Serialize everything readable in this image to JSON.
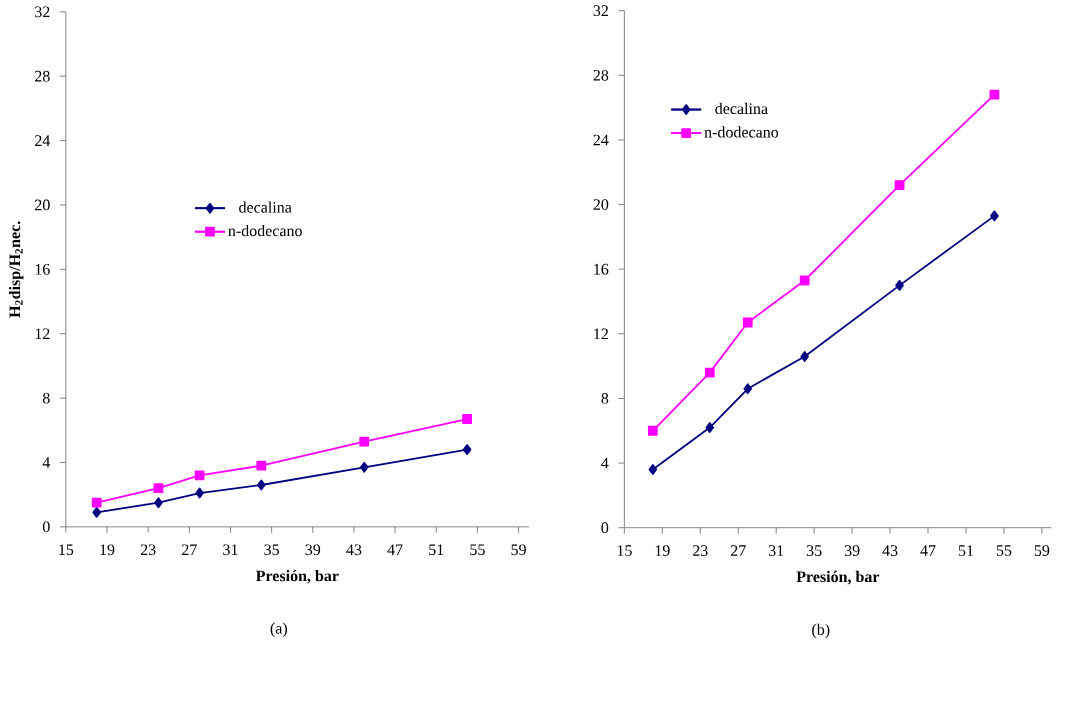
{
  "chart_data": [
    {
      "type": "line",
      "xlabel": "Presión, bar",
      "ylabel": "H$_{2}$disp/H$_{2}$nec.",
      "annotations": [
        "(a)"
      ],
      "x": [
        18,
        24,
        28,
        34,
        44,
        54
      ],
      "series": [
        {
          "name": "decalina",
          "color": "#000080",
          "marker": "diamond",
          "values": [
            0.9,
            1.5,
            2.1,
            2.6,
            3.7,
            4.8
          ]
        },
        {
          "name": "n-dodecano",
          "color": "#ff00ff",
          "marker": "square",
          "values": [
            1.5,
            2.4,
            3.2,
            3.8,
            5.3,
            6.7
          ]
        }
      ],
      "xlim": [
        15,
        60
      ],
      "ylim": [
        0,
        32
      ],
      "xticks": [
        15,
        19,
        23,
        27,
        31,
        35,
        39,
        43,
        47,
        51,
        55,
        59
      ],
      "yticks": [
        0,
        4,
        8,
        12,
        16,
        20,
        24,
        28,
        32
      ],
      "grid": false,
      "legend": "center left",
      "line_style": "solid"
    },
    {
      "type": "line",
      "xlabel": "Presión, bar",
      "annotations": [
        "(b)"
      ],
      "x": [
        18,
        24,
        28,
        34,
        44,
        54
      ],
      "series": [
        {
          "name": "decalina",
          "color": "#000080",
          "marker": "diamond",
          "values": [
            3.6,
            6.2,
            8.6,
            10.6,
            15.0,
            19.3
          ]
        },
        {
          "name": "n-dodecano",
          "color": "#ff00ff",
          "marker": "square",
          "values": [
            6.0,
            9.6,
            12.7,
            15.3,
            21.2,
            26.8
          ]
        }
      ],
      "xlim": [
        15,
        60
      ],
      "ylim": [
        0,
        32
      ],
      "xticks": [
        15,
        19,
        23,
        27,
        31,
        35,
        39,
        43,
        47,
        51,
        55,
        59
      ],
      "yticks": [
        0,
        4,
        8,
        12,
        16,
        20,
        24,
        28,
        32
      ],
      "grid": false,
      "legend": "top left",
      "line_style": "solid"
    }
  ]
}
